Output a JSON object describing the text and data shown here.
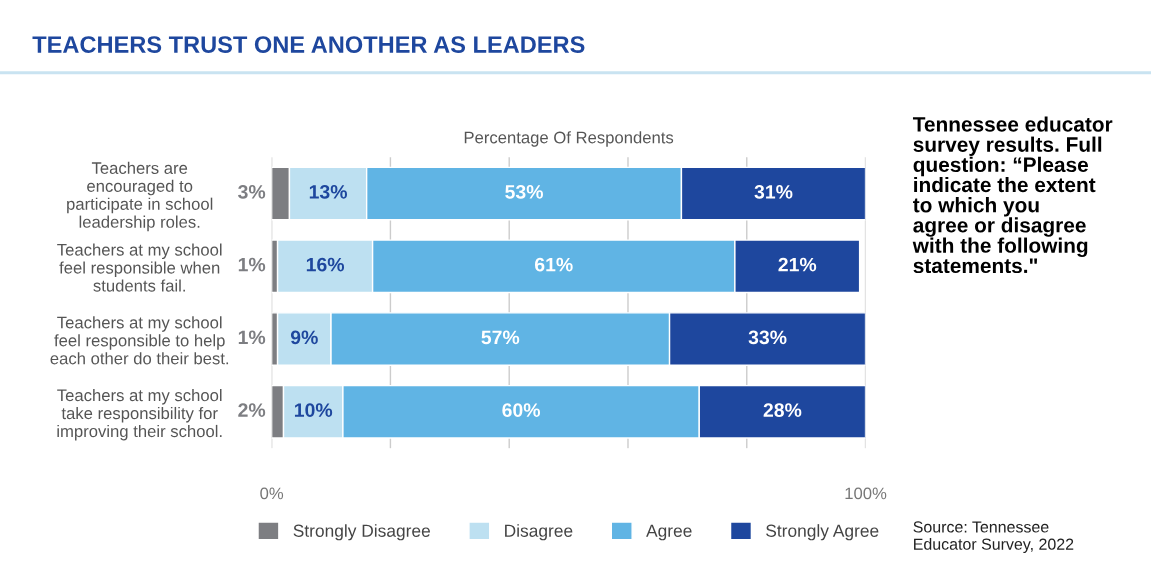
{
  "chart_data": {
    "type": "bar",
    "orientation": "horizontal",
    "stacked": true,
    "title": "TEACHERS TRUST ONE ANOTHER AS LEADERS",
    "xlabel": "Percentage Of Respondents",
    "categories": [
      "Teachers are\nencouraged to\nparticipate in school\nleadership roles.",
      "Teachers at my school\nfeel responsible when\nstudents fail.",
      "Teachers at my school\nfeel responsible to help\neach other do their best.",
      "Teachers at my school\ntake responsibility for\nimproving their school."
    ],
    "series": [
      {
        "name": "Strongly Disagree",
        "color": "#7d7e82",
        "values": [
          3,
          1,
          1,
          2
        ],
        "value_labels": [
          "3%",
          "1%",
          "1%",
          "2%"
        ]
      },
      {
        "name": "Disagree",
        "color": "#bde0f1",
        "values": [
          13,
          16,
          9,
          10
        ],
        "value_labels": [
          "13%",
          "16%",
          "9%",
          "10%"
        ]
      },
      {
        "name": "Agree",
        "color": "#60b4e4",
        "values": [
          53,
          61,
          57,
          60
        ],
        "value_labels": [
          "53%",
          "61%",
          "57%",
          "60%"
        ]
      },
      {
        "name": "Strongly Agree",
        "color": "#1e479e",
        "values": [
          31,
          21,
          33,
          28
        ],
        "value_labels": [
          "31%",
          "21%",
          "33%",
          "28%"
        ]
      }
    ],
    "xlim": [
      0,
      100
    ],
    "xticks": [
      {
        "value": 0,
        "label": "0%"
      },
      {
        "value": 20,
        "label": null
      },
      {
        "value": 40,
        "label": null
      },
      {
        "value": 60,
        "label": null
      },
      {
        "value": 80,
        "label": null
      },
      {
        "value": 100,
        "label": "100%"
      }
    ],
    "grid": "x",
    "legend": "bottom",
    "annotations": [
      "Tennessee educator\nsurvey results. Full\nquestion: “Please\nindicate the extent\nto which you\nagree or disagree\nwith the following\nstatements.\"",
      "Source: Tennessee\nEducator Survey, 2022"
    ]
  }
}
